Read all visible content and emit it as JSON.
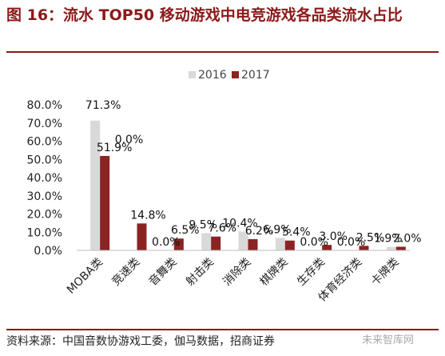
{
  "header": {
    "title": "图 16：流水 TOP50 移动游戏中电竞游戏各品类流水占比"
  },
  "footer": {
    "source": "资料来源：中国音数协游戏工委，伽马数据，招商证券",
    "watermark": "未来智库网"
  },
  "chart_data": {
    "type": "bar",
    "categories": [
      "MOBA类",
      "竞速类",
      "音舞类",
      "射击类",
      "消除类",
      "棋牌类",
      "生存类",
      "体育经济类",
      "卡牌类"
    ],
    "series": [
      {
        "name": "2016",
        "color": "#d9d9d9",
        "values": [
          71.3,
          0.0,
          0.0,
          9.5,
          10.4,
          6.9,
          0.0,
          0.0,
          1.9
        ],
        "labels": [
          "71.3%",
          "0.0%",
          "0.0%",
          "9.5%",
          "10.4%",
          "6.9%",
          "0.0%",
          "0.0%",
          "1.9%"
        ]
      },
      {
        "name": "2017",
        "color": "#8b2323",
        "values": [
          51.9,
          14.8,
          6.5,
          7.6,
          6.2,
          5.4,
          3.0,
          2.5,
          2.0
        ],
        "labels": [
          "51.9%",
          "14.8%",
          "6.5%",
          "7.6%",
          "6.2%",
          "5.4%",
          "3.0%",
          "2.5%",
          "2.0%"
        ]
      }
    ],
    "yticks": [
      "0.0%",
      "10.0%",
      "20.0%",
      "30.0%",
      "40.0%",
      "50.0%",
      "60.0%",
      "70.0%",
      "80.0%"
    ],
    "ylim": [
      0,
      80
    ],
    "legend_position": "top-center",
    "grid": false
  }
}
